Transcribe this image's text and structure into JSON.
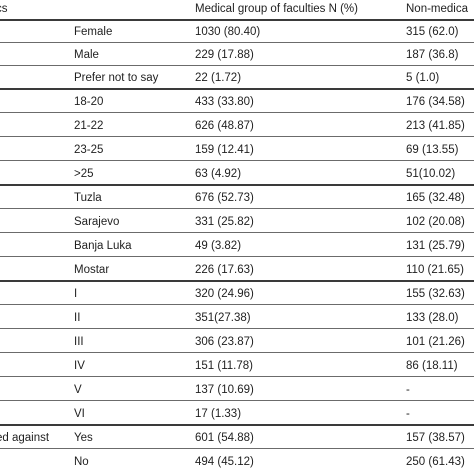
{
  "header": {
    "col_category": "cs",
    "col_medical": "Medical group of faculties N (%)",
    "col_nonmedical": "Non-medica"
  },
  "rows": [
    {
      "category": "",
      "option": "Female",
      "medical": "1030 (80.40)",
      "nonmedical": "315 (62.0)"
    },
    {
      "category": "",
      "option": "Male",
      "medical": "229 (17.88)",
      "nonmedical": "187 (36.8)"
    },
    {
      "category": "",
      "option": "Prefer not to say",
      "medical": "22 (1.72)",
      "nonmedical": "5 (1.0)"
    },
    {
      "category": "",
      "option": "18-20",
      "medical": "433 (33.80)",
      "nonmedical": "176 (34.58)"
    },
    {
      "category": "",
      "option": "21-22",
      "medical": "626 (48.87)",
      "nonmedical": "213 (41.85)"
    },
    {
      "category": "",
      "option": "23-25",
      "medical": "159 (12.41)",
      "nonmedical": "69 (13.55)"
    },
    {
      "category": "",
      "option": ">25",
      "medical": "63 (4.92)",
      "nonmedical": "51(10.02)"
    },
    {
      "category": "",
      "option": "Tuzla",
      "medical": "676 (52.73)",
      "nonmedical": "165 (32.48)"
    },
    {
      "category": "",
      "option": "Sarajevo",
      "medical": "331 (25.82)",
      "nonmedical": "102 (20.08)"
    },
    {
      "category": "",
      "option": "Banja Luka",
      "medical": "49 (3.82)",
      "nonmedical": "131 (25.79)"
    },
    {
      "category": "",
      "option": "Mostar",
      "medical": "226 (17.63)",
      "nonmedical": "110 (21.65)"
    },
    {
      "category": "",
      "option": "I",
      "medical": "320 (24.96)",
      "nonmedical": "155 (32.63)"
    },
    {
      "category": "",
      "option": "II",
      "medical": "351(27.38)",
      "nonmedical": "133 (28.0)"
    },
    {
      "category": "",
      "option": "III",
      "medical": "306 (23.87)",
      "nonmedical": "101 (21.26)"
    },
    {
      "category": "",
      "option": "IV",
      "medical": "151 (11.78)",
      "nonmedical": "86 (18.11)"
    },
    {
      "category": "",
      "option": "V",
      "medical": "137 (10.69)",
      "nonmedical": "-"
    },
    {
      "category": "",
      "option": "VI",
      "medical": "17 (1.33)",
      "nonmedical": "-"
    },
    {
      "category": "ed against",
      "option": "Yes",
      "medical": "601 (54.88)",
      "nonmedical": "157 (38.57)"
    },
    {
      "category": "",
      "option": "No",
      "medical": "494 (45.12)",
      "nonmedical": "250 (61.43)"
    }
  ]
}
